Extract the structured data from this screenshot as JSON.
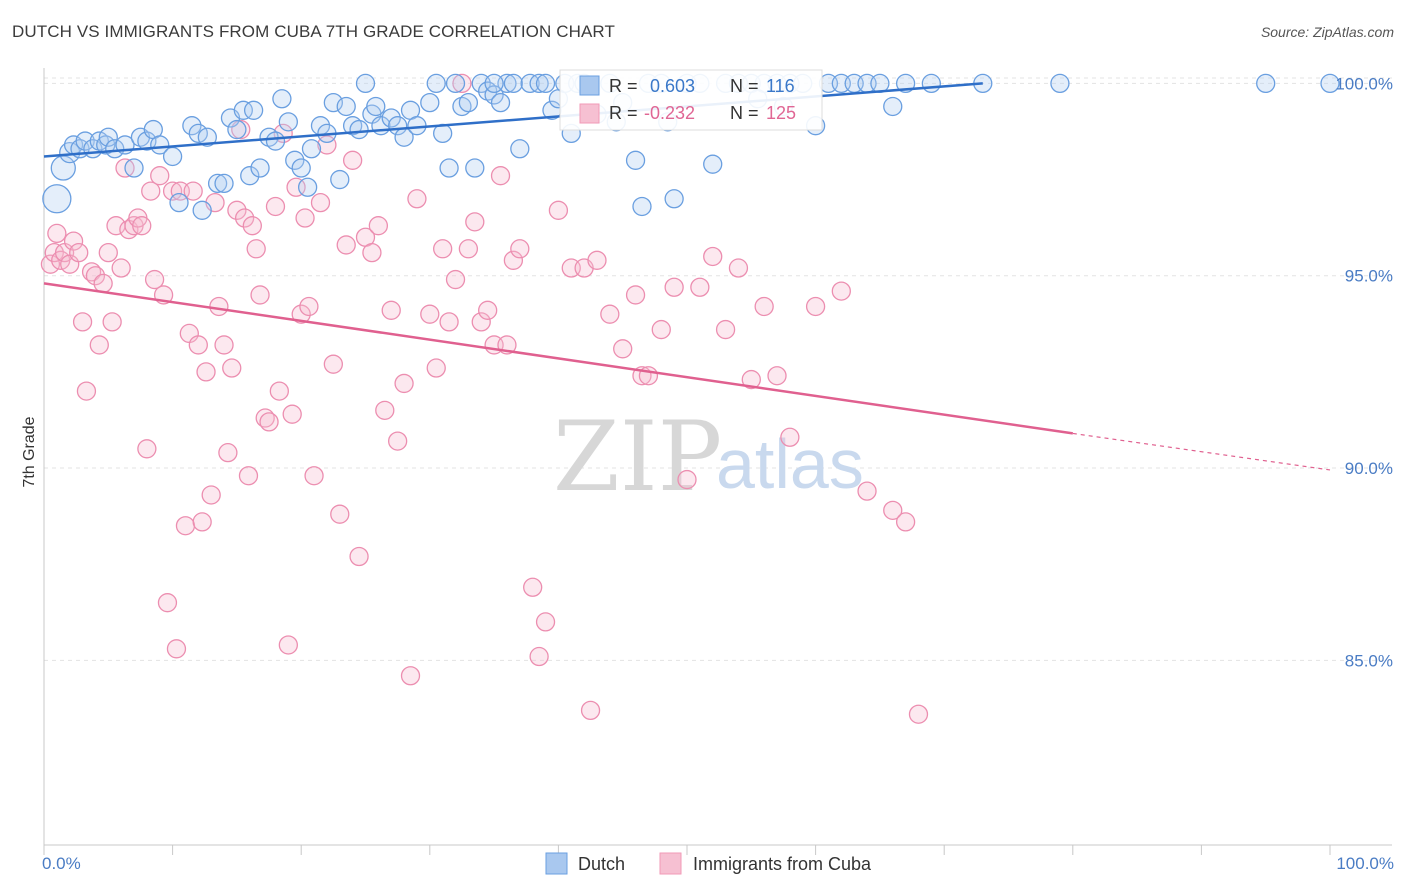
{
  "title": "DUTCH VS IMMIGRANTS FROM CUBA 7TH GRADE CORRELATION CHART",
  "source": "Source: ZipAtlas.com",
  "watermark": {
    "zip": "ZIP",
    "atlas": "atlas"
  },
  "colors": {
    "blue": "#6a9fe0",
    "blue_line": "#2f6fc8",
    "pink": "#f19ab7",
    "pink_line": "#e0608f",
    "grid": "#e3e3e3",
    "axis_text": "#4a7cc4"
  },
  "legend_box": {
    "row1": {
      "r_label": "R = ",
      "r_value": "0.603",
      "n_label": "N = ",
      "n_value": "116"
    },
    "row2": {
      "r_label": "R = ",
      "r_value": "-0.232",
      "n_label": "N = ",
      "n_value": "125"
    }
  },
  "chart_data": {
    "type": "scatter",
    "title": "DUTCH VS IMMIGRANTS FROM CUBA 7TH GRADE CORRELATION CHART",
    "xlabel": "",
    "ylabel": "7th Grade",
    "xlim": [
      0,
      100
    ],
    "ylim": [
      80.2,
      100.4
    ],
    "x_tick_labels": [
      "0.0%",
      "100.0%"
    ],
    "y_ticks": [
      85,
      90,
      95,
      100
    ],
    "y_tick_labels": [
      "85.0%",
      "90.0%",
      "95.0%",
      "100.0%"
    ],
    "grid": true,
    "legend_position": "bottom-center",
    "series": [
      {
        "name": "Dutch",
        "color": "#6a9fe0",
        "r": 0.603,
        "n": 116,
        "trend": {
          "x": [
            0,
            73
          ],
          "y": [
            98.1,
            100.0
          ]
        },
        "points": [
          [
            1,
            97.0
          ],
          [
            1.5,
            97.8
          ],
          [
            2,
            98.2
          ],
          [
            2.3,
            98.4
          ],
          [
            2.8,
            98.3
          ],
          [
            3.2,
            98.5
          ],
          [
            3.8,
            98.3
          ],
          [
            4.3,
            98.5
          ],
          [
            4.8,
            98.4
          ],
          [
            5,
            98.6
          ],
          [
            5.5,
            98.3
          ],
          [
            6.3,
            98.4
          ],
          [
            7,
            97.8
          ],
          [
            7.5,
            98.6
          ],
          [
            8,
            98.5
          ],
          [
            8.5,
            98.8
          ],
          [
            9,
            98.4
          ],
          [
            10,
            98.1
          ],
          [
            10.5,
            96.9
          ],
          [
            11.5,
            98.9
          ],
          [
            12,
            98.7
          ],
          [
            12.3,
            96.7
          ],
          [
            12.7,
            98.6
          ],
          [
            13.5,
            97.4
          ],
          [
            14,
            97.4
          ],
          [
            14.5,
            99.1
          ],
          [
            15,
            98.8
          ],
          [
            15.5,
            99.3
          ],
          [
            16,
            97.6
          ],
          [
            16.3,
            99.3
          ],
          [
            16.8,
            97.8
          ],
          [
            17.5,
            98.6
          ],
          [
            18,
            98.5
          ],
          [
            18.5,
            99.6
          ],
          [
            19,
            99.0
          ],
          [
            19.5,
            98.0
          ],
          [
            20,
            97.8
          ],
          [
            20.5,
            97.3
          ],
          [
            20.8,
            98.3
          ],
          [
            21.5,
            98.9
          ],
          [
            22,
            98.7
          ],
          [
            22.5,
            99.5
          ],
          [
            23,
            97.5
          ],
          [
            23.5,
            99.4
          ],
          [
            24,
            98.9
          ],
          [
            24.5,
            98.8
          ],
          [
            25,
            100.0
          ],
          [
            25.5,
            99.2
          ],
          [
            25.8,
            99.4
          ],
          [
            26.2,
            98.9
          ],
          [
            27,
            99.1
          ],
          [
            27.5,
            98.9
          ],
          [
            28,
            98.6
          ],
          [
            28.5,
            99.3
          ],
          [
            29,
            98.9
          ],
          [
            30,
            99.5
          ],
          [
            30.5,
            100.0
          ],
          [
            31,
            98.7
          ],
          [
            31.5,
            97.8
          ],
          [
            32,
            100.0
          ],
          [
            32.5,
            99.4
          ],
          [
            33,
            99.5
          ],
          [
            33.5,
            97.8
          ],
          [
            34,
            100.0
          ],
          [
            34.5,
            99.8
          ],
          [
            35,
            99.7
          ],
          [
            35.5,
            99.5
          ],
          [
            36,
            100.0
          ],
          [
            36.5,
            100.0
          ],
          [
            37,
            98.3
          ],
          [
            37.8,
            100.0
          ],
          [
            38.5,
            100.0
          ],
          [
            39,
            100.0
          ],
          [
            39.5,
            99.3
          ],
          [
            40,
            99.6
          ],
          [
            40.5,
            100.0
          ],
          [
            41,
            98.7
          ],
          [
            41.5,
            100.0
          ],
          [
            42,
            100.0
          ],
          [
            43,
            99.2
          ],
          [
            44,
            100.0
          ],
          [
            45,
            99.5
          ],
          [
            46,
            98.0
          ],
          [
            46.5,
            96.8
          ],
          [
            47,
            100.0
          ],
          [
            48,
            100.0
          ],
          [
            49,
            97.0
          ],
          [
            50,
            100.0
          ],
          [
            51,
            100.0
          ],
          [
            52,
            97.9
          ],
          [
            53,
            100.0
          ],
          [
            54,
            100.0
          ],
          [
            55,
            100.0
          ],
          [
            56,
            100.0
          ],
          [
            57,
            100.0
          ],
          [
            58,
            100.0
          ],
          [
            59,
            100.0
          ],
          [
            60,
            98.9
          ],
          [
            61,
            100.0
          ],
          [
            62,
            100.0
          ],
          [
            63,
            100.0
          ],
          [
            64,
            100.0
          ],
          [
            65,
            100.0
          ],
          [
            66,
            99.4
          ],
          [
            67,
            100.0
          ],
          [
            69,
            100.0
          ],
          [
            73,
            100.0
          ],
          [
            79,
            100.0
          ],
          [
            95,
            100.0
          ],
          [
            100,
            100.0
          ],
          [
            35,
            100.0
          ],
          [
            44.5,
            99.0
          ],
          [
            48.5,
            99.0
          ],
          [
            55.5,
            99.6
          ],
          [
            57.5,
            99.4
          ]
        ]
      },
      {
        "name": "Immigrants from Cuba",
        "color": "#f19ab7",
        "r": -0.232,
        "n": 125,
        "trend": {
          "x": [
            0,
            80
          ],
          "y": [
            94.8,
            90.9
          ]
        },
        "trend_dashed": {
          "x": [
            80,
            100
          ],
          "y": [
            90.9,
            89.95
          ]
        },
        "points": [
          [
            0.5,
            95.3
          ],
          [
            0.8,
            95.6
          ],
          [
            1,
            96.1
          ],
          [
            1.3,
            95.4
          ],
          [
            1.6,
            95.6
          ],
          [
            2,
            95.3
          ],
          [
            2.3,
            95.9
          ],
          [
            2.7,
            95.6
          ],
          [
            3,
            93.8
          ],
          [
            3.3,
            92.0
          ],
          [
            3.7,
            95.1
          ],
          [
            4,
            95.0
          ],
          [
            4.3,
            93.2
          ],
          [
            4.6,
            94.8
          ],
          [
            5,
            95.6
          ],
          [
            5.3,
            93.8
          ],
          [
            5.6,
            96.3
          ],
          [
            6,
            95.2
          ],
          [
            6.3,
            97.8
          ],
          [
            6.6,
            96.2
          ],
          [
            7,
            96.3
          ],
          [
            7.3,
            96.5
          ],
          [
            7.6,
            96.3
          ],
          [
            8,
            90.5
          ],
          [
            8.3,
            97.2
          ],
          [
            8.6,
            94.9
          ],
          [
            9,
            97.6
          ],
          [
            9.3,
            94.5
          ],
          [
            9.6,
            86.5
          ],
          [
            10,
            97.2
          ],
          [
            10.3,
            85.3
          ],
          [
            10.6,
            97.2
          ],
          [
            11,
            88.5
          ],
          [
            11.3,
            93.5
          ],
          [
            11.6,
            97.2
          ],
          [
            12,
            93.2
          ],
          [
            12.3,
            88.6
          ],
          [
            12.6,
            92.5
          ],
          [
            13,
            89.3
          ],
          [
            13.3,
            96.9
          ],
          [
            13.6,
            94.2
          ],
          [
            14,
            93.2
          ],
          [
            14.3,
            90.4
          ],
          [
            14.6,
            92.6
          ],
          [
            15,
            96.7
          ],
          [
            15.3,
            98.8
          ],
          [
            15.6,
            96.5
          ],
          [
            15.9,
            89.8
          ],
          [
            16.2,
            96.3
          ],
          [
            16.5,
            95.7
          ],
          [
            16.8,
            94.5
          ],
          [
            17.2,
            91.3
          ],
          [
            17.5,
            91.2
          ],
          [
            18,
            96.8
          ],
          [
            18.3,
            92.0
          ],
          [
            18.6,
            98.7
          ],
          [
            19,
            85.4
          ],
          [
            19.3,
            91.4
          ],
          [
            19.6,
            97.3
          ],
          [
            20,
            94.0
          ],
          [
            20.3,
            96.5
          ],
          [
            20.6,
            94.2
          ],
          [
            21,
            89.8
          ],
          [
            21.5,
            96.9
          ],
          [
            22,
            98.4
          ],
          [
            22.5,
            92.7
          ],
          [
            23,
            88.8
          ],
          [
            23.5,
            95.8
          ],
          [
            24,
            98.0
          ],
          [
            24.5,
            87.7
          ],
          [
            25,
            96.0
          ],
          [
            25.5,
            95.6
          ],
          [
            26,
            96.3
          ],
          [
            26.5,
            91.5
          ],
          [
            27,
            94.1
          ],
          [
            27.5,
            90.7
          ],
          [
            28,
            92.2
          ],
          [
            28.5,
            84.6
          ],
          [
            29,
            97.0
          ],
          [
            30,
            94.0
          ],
          [
            30.5,
            92.6
          ],
          [
            31,
            95.7
          ],
          [
            31.5,
            93.8
          ],
          [
            32,
            94.9
          ],
          [
            32.5,
            100.0
          ],
          [
            33,
            95.7
          ],
          [
            33.5,
            96.4
          ],
          [
            34,
            93.8
          ],
          [
            34.5,
            94.1
          ],
          [
            35,
            93.2
          ],
          [
            35.5,
            97.6
          ],
          [
            36,
            93.2
          ],
          [
            36.5,
            95.4
          ],
          [
            37,
            95.7
          ],
          [
            38,
            86.9
          ],
          [
            38.5,
            85.1
          ],
          [
            39,
            86.0
          ],
          [
            40,
            96.7
          ],
          [
            41,
            95.2
          ],
          [
            42,
            95.2
          ],
          [
            42.5,
            83.7
          ],
          [
            43,
            95.4
          ],
          [
            44,
            94.0
          ],
          [
            45,
            93.1
          ],
          [
            46,
            94.5
          ],
          [
            46.5,
            92.4
          ],
          [
            47,
            92.4
          ],
          [
            48,
            93.6
          ],
          [
            49,
            94.7
          ],
          [
            50,
            89.7
          ],
          [
            51,
            94.7
          ],
          [
            52,
            95.5
          ],
          [
            53,
            93.6
          ],
          [
            54,
            95.2
          ],
          [
            55,
            92.3
          ],
          [
            56,
            94.2
          ],
          [
            57,
            92.4
          ],
          [
            58,
            90.8
          ],
          [
            60,
            94.2
          ],
          [
            62,
            94.6
          ],
          [
            64,
            89.4
          ],
          [
            66,
            88.9
          ],
          [
            67,
            88.6
          ],
          [
            68,
            83.6
          ]
        ]
      }
    ]
  }
}
